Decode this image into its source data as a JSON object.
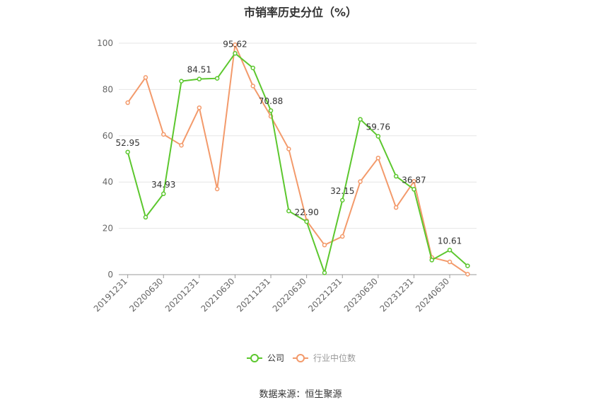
{
  "chart_data": {
    "type": "line",
    "title": "市销率历史分位（%）",
    "source": "数据来源：恒生聚源",
    "ylim": [
      0,
      100
    ],
    "yticks": [
      0,
      20,
      40,
      60,
      80,
      100
    ],
    "x": [
      "20191231",
      "20200331",
      "20200630",
      "20200930",
      "20201231",
      "20210331",
      "20210630",
      "20210930",
      "20211231",
      "20220331",
      "20220630",
      "20220930",
      "20221231",
      "20230331",
      "20230630",
      "20230930",
      "20231231",
      "20240331",
      "20240630",
      "20240930"
    ],
    "xtick_labels": [
      "20191231",
      "20200630",
      "20201231",
      "20210630",
      "20211231",
      "20220630",
      "20221231",
      "20230630",
      "20231231",
      "20240630"
    ],
    "grid": true,
    "legend_position": "bottom",
    "series": [
      {
        "name": "公司",
        "color": "#5cc72e",
        "values": [
          52.95,
          24.8,
          34.93,
          83.6,
          84.51,
          84.8,
          95.62,
          89.3,
          70.88,
          27.5,
          22.9,
          0.8,
          32.15,
          67.1,
          59.76,
          42.5,
          36.87,
          6.3,
          10.61,
          3.8
        ],
        "labels": {
          "0": "52.95",
          "2": "34.93",
          "4": "84.51",
          "6": "95.62",
          "8": "70.88",
          "10": "22.90",
          "12": "32.15",
          "14": "59.76",
          "16": "36.87",
          "18": "10.61"
        }
      },
      {
        "name": "行业中位数",
        "color": "#f39a6b",
        "values": [
          74.3,
          85.2,
          60.6,
          55.9,
          72.1,
          37.0,
          99.3,
          81.5,
          68.4,
          54.3,
          23.3,
          12.8,
          16.5,
          40.2,
          50.4,
          29.0,
          40.3,
          7.4,
          5.5,
          0.2
        ]
      }
    ]
  }
}
